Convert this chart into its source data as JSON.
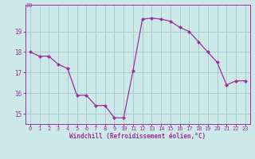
{
  "x": [
    0,
    1,
    2,
    3,
    4,
    5,
    6,
    7,
    8,
    9,
    10,
    11,
    12,
    13,
    14,
    15,
    16,
    17,
    18,
    19,
    20,
    21,
    22,
    23
  ],
  "y": [
    18.0,
    17.8,
    17.8,
    17.4,
    17.2,
    15.9,
    15.9,
    15.4,
    15.4,
    14.8,
    14.8,
    17.1,
    19.6,
    19.65,
    19.6,
    19.5,
    19.2,
    19.0,
    18.5,
    18.0,
    17.5,
    16.4,
    16.6,
    16.6
  ],
  "line_color": "#993399",
  "marker": "D",
  "marker_size": 2,
  "bg_color": "#cce8e8",
  "grid_color": "#aacccc",
  "xlabel": "Windchill (Refroidissement éolien,°C)",
  "xlim": [
    -0.5,
    23.5
  ],
  "ylim": [
    14.5,
    20.3
  ],
  "yticks": [
    15,
    16,
    17,
    18,
    19
  ],
  "xticks": [
    0,
    1,
    2,
    3,
    4,
    5,
    6,
    7,
    8,
    9,
    10,
    11,
    12,
    13,
    14,
    15,
    16,
    17,
    18,
    19,
    20,
    21,
    22,
    23
  ],
  "top_label": "20"
}
